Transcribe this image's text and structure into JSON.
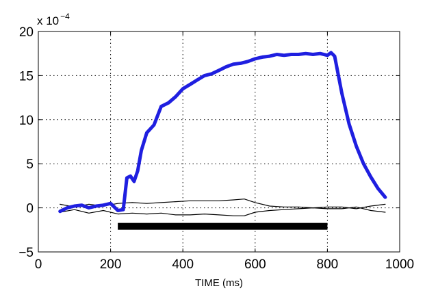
{
  "chart_data": {
    "type": "line",
    "xlabel": "TIME (ms)",
    "ylabel": "",
    "scale_text": "x 10",
    "scale_exponent": "−4",
    "xlim": [
      0,
      1000
    ],
    "ylim": [
      -5,
      20
    ],
    "x_ticks": [
      "0",
      "200",
      "400",
      "600",
      "800",
      "1000"
    ],
    "y_ticks": [
      "−5",
      "0",
      "5",
      "10",
      "15",
      "20"
    ],
    "grid": true,
    "series": [
      {
        "color": "#1f1fe0",
        "x": [
          60,
          80,
          100,
          120,
          140,
          160,
          180,
          200,
          210,
          220,
          235,
          245,
          255,
          265,
          275,
          285,
          300,
          320,
          340,
          360,
          380,
          400,
          420,
          440,
          460,
          480,
          500,
          520,
          540,
          560,
          580,
          600,
          620,
          640,
          660,
          680,
          700,
          720,
          740,
          760,
          780,
          800,
          810,
          820,
          840,
          860,
          880,
          900,
          920,
          940,
          960
        ],
        "values": [
          -0.4,
          0.0,
          0.2,
          0.3,
          0.0,
          0.2,
          0.3,
          0.5,
          0.1,
          -0.3,
          -0.2,
          3.4,
          3.6,
          3.0,
          4.2,
          6.5,
          8.5,
          9.4,
          11.5,
          11.9,
          12.6,
          13.5,
          14.0,
          14.5,
          15.0,
          15.2,
          15.6,
          16.0,
          16.3,
          16.4,
          16.6,
          16.9,
          17.1,
          17.2,
          17.4,
          17.3,
          17.4,
          17.4,
          17.5,
          17.4,
          17.5,
          17.3,
          17.6,
          17.2,
          13.0,
          9.5,
          7.0,
          5.0,
          3.5,
          2.2,
          1.2
        ]
      },
      {
        "color": "#000000",
        "x": [
          60,
          100,
          140,
          180,
          220,
          260,
          300,
          340,
          380,
          420,
          460,
          500,
          540,
          570,
          600,
          640,
          680,
          720,
          760,
          800,
          840,
          880,
          920,
          960
        ],
        "values": [
          0.4,
          0.1,
          0.4,
          0.2,
          0.5,
          0.6,
          0.5,
          0.6,
          0.7,
          0.8,
          0.8,
          0.8,
          0.9,
          1.0,
          0.6,
          0.2,
          0.1,
          0.1,
          0.0,
          0.1,
          0.1,
          -0.1,
          0.2,
          0.4
        ]
      },
      {
        "color": "#000000",
        "x": [
          60,
          100,
          140,
          180,
          220,
          260,
          300,
          340,
          380,
          420,
          460,
          500,
          540,
          570,
          600,
          640,
          680,
          720,
          760,
          800,
          840,
          880,
          920,
          960
        ],
        "values": [
          -0.5,
          -0.2,
          -0.6,
          -0.3,
          -0.7,
          -0.6,
          -0.7,
          -0.6,
          -0.8,
          -0.8,
          -0.7,
          -0.8,
          -0.9,
          -0.9,
          -0.5,
          -0.3,
          -0.2,
          -0.1,
          0.0,
          -0.1,
          -0.1,
          0.1,
          -0.3,
          -0.5
        ]
      }
    ],
    "bar": {
      "x_start": 220,
      "x_end": 800,
      "y": -2.1,
      "color": "#000000"
    }
  }
}
